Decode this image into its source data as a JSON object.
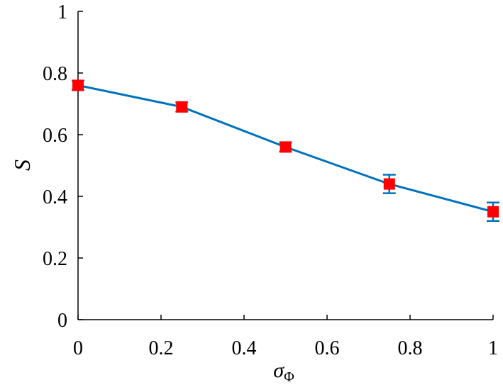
{
  "chart_data": {
    "type": "line",
    "title": "",
    "xlabel": "σ",
    "xlabel_sub": "Φ",
    "ylabel": "S",
    "xlim": [
      0,
      1
    ],
    "ylim": [
      0,
      1
    ],
    "xticks": [
      0,
      0.2,
      0.4,
      0.6,
      0.8,
      1
    ],
    "yticks": [
      0,
      0.2,
      0.4,
      0.6,
      0.8,
      1
    ],
    "xtick_labels": [
      "0",
      "0.2",
      "0.4",
      "0.6",
      "0.8",
      "1"
    ],
    "ytick_labels": [
      "0",
      "0.2",
      "0.4",
      "0.6",
      "0.8",
      "1"
    ],
    "grid": false,
    "series": [
      {
        "x": [
          0,
          0.25,
          0.5,
          0.75,
          1
        ],
        "y": [
          0.76,
          0.69,
          0.56,
          0.44,
          0.35
        ],
        "yerr": [
          0.015,
          0.015,
          0.015,
          0.03,
          0.03
        ],
        "line_color": "#0072BD",
        "marker_color": "#FF0000",
        "marker": "square"
      }
    ]
  }
}
